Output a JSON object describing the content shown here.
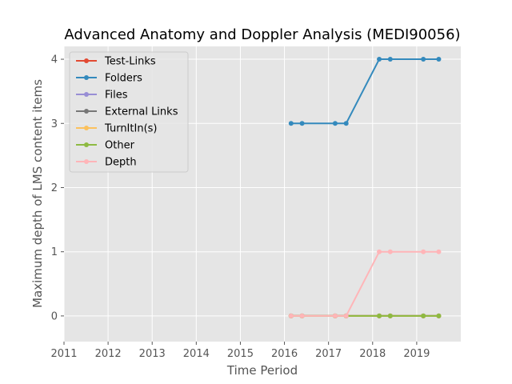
{
  "chart_data": {
    "type": "line",
    "title": "Advanced Anatomy and Doppler Analysis (MEDI90056)",
    "xlabel": "Time Period",
    "ylabel": "Maximum depth of LMS content items",
    "xlim": [
      2011,
      2020
    ],
    "ylim": [
      -0.4,
      4.2
    ],
    "x_ticks": [
      2011,
      2012,
      2013,
      2014,
      2015,
      2016,
      2017,
      2018,
      2019
    ],
    "y_ticks": [
      0,
      1,
      2,
      3,
      4
    ],
    "grid": true,
    "legend_position": "top-left",
    "x": [
      2016.15,
      2016.4,
      2017.15,
      2017.4,
      2018.15,
      2018.4,
      2019.15,
      2019.5
    ],
    "series": [
      {
        "name": "Test-Links",
        "color": "#E24A33",
        "values": [
          0,
          0,
          0,
          0,
          0,
          0,
          0,
          0
        ]
      },
      {
        "name": "Folders",
        "color": "#348ABD",
        "values": [
          3,
          3,
          3,
          3,
          4,
          4,
          4,
          4
        ]
      },
      {
        "name": "Files",
        "color": "#988ED5",
        "values": [
          0,
          0,
          0,
          0,
          0,
          0,
          0,
          0
        ]
      },
      {
        "name": "External Links",
        "color": "#777777",
        "values": [
          0,
          0,
          0,
          0,
          0,
          0,
          0,
          0
        ]
      },
      {
        "name": "TurnItIn(s)",
        "color": "#FBC15E",
        "values": [
          0,
          0,
          0,
          0,
          0,
          0,
          0,
          0
        ]
      },
      {
        "name": "Other",
        "color": "#8EBA42",
        "values": [
          0,
          0,
          0,
          0,
          0,
          0,
          0,
          0
        ]
      },
      {
        "name": "Depth",
        "color": "#FFB5B8",
        "values": [
          0,
          0,
          0,
          0,
          1,
          1,
          1,
          1
        ]
      }
    ]
  }
}
